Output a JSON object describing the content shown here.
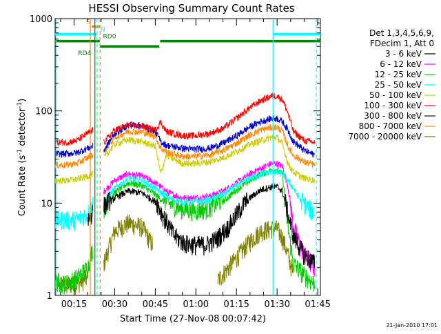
{
  "chart_data": {
    "type": "line",
    "title": "HESSI Observing Summary Count Rates",
    "xlabel": "Start Time (27-Nov-08 00:07:42)",
    "ylabel_main": "Count Rate (s",
    "ylabel_sup1": "-1",
    "ylabel_mid": " detector",
    "ylabel_sup2": "-1",
    "ylabel_end": ")",
    "yscale": "log",
    "ylim": [
      1,
      1000
    ],
    "xlim_min": [
      8,
      106
    ],
    "y_ticks": [
      {
        "v": 1,
        "label": "1"
      },
      {
        "v": 10,
        "label": "10"
      },
      {
        "v": 100,
        "label": "100"
      },
      {
        "v": 1000,
        "label": "1000"
      }
    ],
    "x_ticks": [
      {
        "v": 15,
        "label": "00:15"
      },
      {
        "v": 30,
        "label": "00:30"
      },
      {
        "v": 45,
        "label": "00:45"
      },
      {
        "v": 60,
        "label": "01:00"
      },
      {
        "v": 75,
        "label": "01:15"
      },
      {
        "v": 90,
        "label": "01:30"
      },
      {
        "v": 105,
        "label": "01:45"
      }
    ],
    "legend_header": [
      "Det 1,3,4,5,6,9,",
      "FDecim 1, Att 0"
    ],
    "legend_placement": "right",
    "footer_date": "21-Jan-2010 17:01",
    "series": [
      {
        "name": "3 - 6 keV",
        "color": "#000000",
        "min_pts": [
          [
            8,
            null
          ],
          [
            20,
            6.0
          ],
          [
            21,
            6.5
          ],
          [
            22,
            7.5
          ],
          [
            24,
            null
          ],
          [
            26,
            8.5
          ],
          [
            30,
            11
          ],
          [
            35,
            13
          ],
          [
            40,
            12.5
          ],
          [
            45,
            10
          ],
          [
            48,
            6.5
          ],
          [
            52,
            4
          ],
          [
            56,
            3.3
          ],
          [
            60,
            3.2
          ],
          [
            64,
            3.2
          ],
          [
            68,
            3.8
          ],
          [
            72,
            5
          ],
          [
            76,
            7.5
          ],
          [
            80,
            11
          ],
          [
            84,
            13.5
          ],
          [
            88,
            14.5
          ],
          [
            90,
            14.5
          ],
          [
            92,
            13
          ],
          [
            94,
            7
          ],
          [
            96,
            4
          ],
          [
            100,
            2.5
          ],
          [
            104,
            2.0
          ]
        ]
      },
      {
        "name": "6 - 12 keV",
        "color": "#ff00ff",
        "min_pts": [
          [
            8,
            null
          ],
          [
            26,
            13
          ],
          [
            30,
            17
          ],
          [
            35,
            20
          ],
          [
            40,
            19
          ],
          [
            45,
            16
          ],
          [
            50,
            12.5
          ],
          [
            55,
            11
          ],
          [
            60,
            11
          ],
          [
            65,
            11.5
          ],
          [
            70,
            13
          ],
          [
            75,
            16
          ],
          [
            80,
            20
          ],
          [
            84,
            23
          ],
          [
            88,
            26
          ],
          [
            90,
            26
          ],
          [
            92,
            24
          ],
          [
            94,
            15
          ],
          [
            96,
            5
          ],
          [
            100,
            2.5
          ],
          [
            104,
            1.8
          ]
        ]
      },
      {
        "name": "12 - 25 keV",
        "color": "#00cc00",
        "min_pts": [
          [
            8,
            1.3
          ],
          [
            12,
            1.2
          ],
          [
            16,
            1.4
          ],
          [
            20,
            1.8
          ],
          [
            22,
            3
          ],
          [
            24,
            null
          ],
          [
            26,
            8
          ],
          [
            30,
            12.5
          ],
          [
            35,
            16
          ],
          [
            40,
            15
          ],
          [
            45,
            12
          ],
          [
            50,
            9
          ],
          [
            55,
            7.8
          ],
          [
            60,
            7.5
          ],
          [
            65,
            8
          ],
          [
            70,
            10
          ],
          [
            75,
            13.5
          ],
          [
            80,
            17
          ],
          [
            84,
            20
          ],
          [
            88,
            22
          ],
          [
            90,
            22
          ],
          [
            92,
            20
          ],
          [
            94,
            5
          ],
          [
            96,
            2
          ],
          [
            100,
            1.5
          ],
          [
            104,
            1.2
          ]
        ]
      },
      {
        "name": "25 - 50 keV",
        "color": "#00ffff",
        "min_pts": [
          [
            8,
            6
          ],
          [
            12,
            6
          ],
          [
            16,
            6
          ],
          [
            20,
            7
          ],
          [
            22,
            9
          ],
          [
            24,
            null
          ],
          [
            26,
            10
          ],
          [
            30,
            14
          ],
          [
            35,
            18
          ],
          [
            40,
            17
          ],
          [
            45,
            14
          ],
          [
            50,
            11
          ],
          [
            55,
            10
          ],
          [
            60,
            10
          ],
          [
            65,
            10.5
          ],
          [
            70,
            12
          ],
          [
            75,
            15
          ],
          [
            80,
            18
          ],
          [
            84,
            20
          ],
          [
            88,
            21
          ],
          [
            90,
            21
          ],
          [
            92,
            20
          ],
          [
            94,
            17
          ],
          [
            96,
            14
          ],
          [
            100,
            9
          ],
          [
            104,
            7
          ]
        ]
      },
      {
        "name": "50 - 100 keV",
        "color": "#cccc00",
        "min_pts": [
          [
            8,
            17
          ],
          [
            12,
            17
          ],
          [
            16,
            17.5
          ],
          [
            20,
            19
          ],
          [
            22,
            20
          ],
          [
            24,
            null
          ],
          [
            26,
            30
          ],
          [
            30,
            42
          ],
          [
            35,
            47
          ],
          [
            40,
            45
          ],
          [
            45,
            40
          ],
          [
            47,
            20
          ],
          [
            49,
            32
          ],
          [
            55,
            26
          ],
          [
            60,
            26
          ],
          [
            65,
            27
          ],
          [
            70,
            30
          ],
          [
            75,
            35
          ],
          [
            80,
            42
          ],
          [
            84,
            46
          ],
          [
            88,
            50
          ],
          [
            90,
            50
          ],
          [
            92,
            42
          ],
          [
            94,
            26
          ],
          [
            96,
            21
          ],
          [
            100,
            18
          ],
          [
            104,
            17
          ]
        ]
      },
      {
        "name": "100 - 300 keV",
        "color": "#ff0000",
        "min_pts": [
          [
            8,
            44
          ],
          [
            12,
            44
          ],
          [
            16,
            46
          ],
          [
            20,
            55
          ],
          [
            22,
            60
          ],
          [
            24,
            null
          ],
          [
            26,
            44
          ],
          [
            30,
            60
          ],
          [
            35,
            68
          ],
          [
            40,
            66
          ],
          [
            45,
            60
          ],
          [
            47,
            73
          ],
          [
            49,
            58
          ],
          [
            55,
            52
          ],
          [
            60,
            52
          ],
          [
            65,
            55
          ],
          [
            70,
            62
          ],
          [
            75,
            80
          ],
          [
            80,
            105
          ],
          [
            84,
            125
          ],
          [
            88,
            140
          ],
          [
            90,
            140
          ],
          [
            92,
            128
          ],
          [
            94,
            92
          ],
          [
            96,
            58
          ],
          [
            100,
            46
          ],
          [
            104,
            44
          ]
        ]
      },
      {
        "name": "300 - 800 keV",
        "color": "#0000cc",
        "min_pts": [
          [
            8,
            33
          ],
          [
            12,
            33
          ],
          [
            16,
            34
          ],
          [
            20,
            38
          ],
          [
            22,
            40
          ],
          [
            24,
            null
          ],
          [
            26,
            36
          ],
          [
            30,
            55
          ],
          [
            35,
            68
          ],
          [
            40,
            67
          ],
          [
            45,
            58
          ],
          [
            47,
            45
          ],
          [
            49,
            41
          ],
          [
            55,
            38
          ],
          [
            60,
            37
          ],
          [
            65,
            38
          ],
          [
            70,
            43
          ],
          [
            75,
            52
          ],
          [
            80,
            65
          ],
          [
            84,
            74
          ],
          [
            88,
            80
          ],
          [
            90,
            80
          ],
          [
            92,
            74
          ],
          [
            94,
            60
          ],
          [
            96,
            45
          ],
          [
            100,
            36
          ],
          [
            104,
            32
          ]
        ]
      },
      {
        "name": "800 - 7000 keV",
        "color": "#ff8800",
        "min_pts": [
          [
            8,
            25
          ],
          [
            12,
            25
          ],
          [
            16,
            26
          ],
          [
            20,
            30
          ],
          [
            22,
            33
          ],
          [
            24,
            null
          ],
          [
            26,
            35
          ],
          [
            30,
            50
          ],
          [
            35,
            58
          ],
          [
            40,
            57
          ],
          [
            45,
            52
          ],
          [
            47,
            38
          ],
          [
            49,
            35
          ],
          [
            55,
            31
          ],
          [
            60,
            31
          ],
          [
            65,
            32
          ],
          [
            70,
            36
          ],
          [
            75,
            43
          ],
          [
            80,
            53
          ],
          [
            84,
            60
          ],
          [
            88,
            64
          ],
          [
            90,
            64
          ],
          [
            92,
            58
          ],
          [
            94,
            40
          ],
          [
            96,
            32
          ],
          [
            100,
            27
          ],
          [
            104,
            25
          ]
        ]
      },
      {
        "name": "7000 - 20000 keV",
        "color": "#808000",
        "min_pts": [
          [
            8,
            1.2
          ],
          [
            12,
            1.2
          ],
          [
            16,
            1.2
          ],
          [
            20,
            1.4
          ],
          [
            24,
            null
          ],
          [
            26,
            2
          ],
          [
            28,
            3
          ],
          [
            30,
            4.5
          ],
          [
            35,
            5.5
          ],
          [
            40,
            5
          ],
          [
            44,
            3.2
          ],
          [
            46,
            null
          ],
          [
            52,
            1
          ],
          [
            60,
            null
          ],
          [
            68,
            1.3
          ],
          [
            72,
            1.8
          ],
          [
            76,
            2.5
          ],
          [
            80,
            3.5
          ],
          [
            84,
            4.5
          ],
          [
            88,
            4.8
          ],
          [
            90,
            4.8
          ],
          [
            92,
            3.8
          ],
          [
            94,
            2.5
          ],
          [
            96,
            1.5
          ],
          [
            100,
            null
          ]
        ]
      }
    ],
    "flag_lines": [
      {
        "label": "S",
        "color": "#ff8800",
        "y": 820,
        "x0": 21.5,
        "x1": 24.5,
        "label_x": 19.5
      },
      {
        "label": "N",
        "color": "#00ffff",
        "y": 680,
        "x0": 8,
        "x1": 23,
        "x2": 88.5,
        "x3": 106,
        "label_x": 24.8
      },
      {
        "label": "RD0",
        "color": "#008000",
        "y": 570,
        "x0": 8,
        "x1": 24.5,
        "x2": 46.8,
        "x3": 106,
        "label_x": 25.7
      },
      {
        "label": "RD4",
        "color": "#008000",
        "y": 500,
        "x0": 24.5,
        "x1": 46.5,
        "label_x": 16.5
      }
    ],
    "vertical_lines": [
      {
        "x": 8.3,
        "color": "#00ffff",
        "style": "solid"
      },
      {
        "x": 21.0,
        "color": "#ff8800",
        "style": "solid"
      },
      {
        "x": 22.7,
        "color": "#008000",
        "style": "solid"
      },
      {
        "x": 23.5,
        "color": "#00ffff",
        "style": "dashed"
      },
      {
        "x": 24.6,
        "color": "#ff8800",
        "style": "dashed"
      },
      {
        "x": 88.5,
        "color": "#00ffff",
        "style": "solid"
      },
      {
        "x": 104.5,
        "color": "#00ffff",
        "style": "dashed"
      }
    ]
  }
}
